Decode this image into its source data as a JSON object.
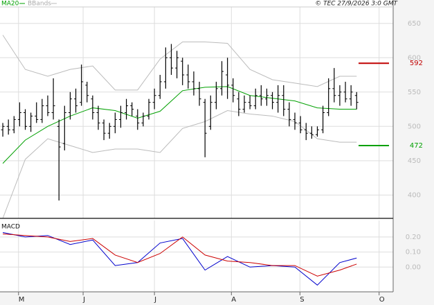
{
  "copyright": "© TEC 27/9/2026 3:0 GMT",
  "chart_data": [
    {
      "type": "ohlc",
      "xlim": [
        -0.5,
        69.5
      ],
      "ylim": [
        366,
        674
      ],
      "yticks": [
        400,
        450,
        500,
        550,
        600,
        650
      ],
      "grid": true,
      "color": "#000000",
      "open": [
        495,
        500,
        495,
        510,
        520,
        500,
        515,
        510,
        530,
        520,
        500,
        475,
        520,
        540,
        535,
        560,
        540,
        520,
        505,
        490,
        500,
        510,
        520,
        530,
        515,
        505,
        515,
        535,
        545,
        565,
        600,
        585,
        595,
        575,
        565,
        555,
        535,
        500,
        535,
        555,
        575,
        560,
        540,
        525,
        535,
        530,
        545,
        540,
        545,
        535,
        545,
        525,
        510,
        505,
        495,
        490,
        488,
        495,
        520,
        555,
        545,
        550,
        540,
        545
      ],
      "high": [
        505,
        510,
        515,
        535,
        525,
        520,
        535,
        540,
        545,
        570,
        510,
        530,
        550,
        555,
        590,
        565,
        545,
        530,
        510,
        505,
        520,
        530,
        540,
        535,
        525,
        520,
        540,
        555,
        575,
        615,
        620,
        610,
        600,
        590,
        580,
        565,
        540,
        545,
        565,
        595,
        600,
        570,
        550,
        545,
        545,
        555,
        560,
        555,
        550,
        560,
        560,
        535,
        520,
        515,
        505,
        500,
        500,
        530,
        570,
        585,
        560,
        565,
        560,
        550
      ],
      "low": [
        485,
        488,
        490,
        500,
        495,
        492,
        505,
        505,
        515,
        510,
        392,
        465,
        510,
        520,
        530,
        535,
        510,
        495,
        480,
        482,
        490,
        498,
        510,
        515,
        495,
        500,
        510,
        525,
        540,
        555,
        575,
        570,
        560,
        555,
        545,
        530,
        455,
        495,
        525,
        545,
        540,
        535,
        515,
        520,
        525,
        525,
        530,
        530,
        525,
        520,
        515,
        500,
        495,
        490,
        480,
        482,
        485,
        490,
        515,
        535,
        530,
        535,
        530,
        525
      ],
      "close": [
        500,
        495,
        510,
        520,
        500,
        515,
        510,
        530,
        520,
        530,
        470,
        520,
        540,
        530,
        565,
        545,
        520,
        505,
        490,
        500,
        510,
        520,
        530,
        525,
        505,
        515,
        535,
        545,
        565,
        600,
        585,
        600,
        575,
        565,
        555,
        540,
        490,
        535,
        555,
        580,
        560,
        545,
        525,
        535,
        530,
        545,
        540,
        545,
        535,
        545,
        525,
        510,
        505,
        495,
        490,
        488,
        495,
        520,
        555,
        545,
        550,
        540,
        550,
        535
      ],
      "series": [
        {
          "name": "MA20",
          "color": "#00a000",
          "x": [
            0,
            4,
            8,
            12,
            16,
            20,
            24,
            28,
            32,
            36,
            40,
            44,
            48,
            52,
            56,
            60,
            63
          ],
          "values": [
            446,
            480,
            500,
            515,
            527,
            523,
            512,
            522,
            552,
            557,
            558,
            545,
            541,
            537,
            527,
            525,
            525
          ]
        },
        {
          "name": "BBands",
          "color": "#bbbbbb",
          "x": [
            0,
            4,
            8,
            12,
            16,
            20,
            24,
            28,
            32,
            36,
            40,
            44,
            48,
            52,
            56,
            60,
            63
          ],
          "values_upper": [
            633,
            583,
            573,
            583,
            588,
            553,
            553,
            598,
            623,
            623,
            621,
            583,
            568,
            563,
            558,
            573,
            573
          ],
          "values_lower": [
            366,
            452,
            482,
            472,
            462,
            467,
            467,
            462,
            497,
            507,
            523,
            518,
            515,
            507,
            482,
            477,
            477
          ]
        }
      ],
      "annotations": [
        {
          "value": 592,
          "color": "#c00000"
        },
        {
          "value": 472,
          "color": "#00a000"
        }
      ]
    },
    {
      "type": "line",
      "title": "MACD",
      "xlim": [
        -0.5,
        69.5
      ],
      "ylim": [
        -0.16,
        0.31
      ],
      "yticks": [
        {
          "value": 0.2,
          "label": "0.20"
        },
        {
          "value": 0.1,
          "label": "0.10"
        },
        {
          "value": 0,
          "label": "0.00"
        }
      ],
      "xticks": [
        {
          "value": 2.8,
          "label": "M"
        },
        {
          "value": 14.3,
          "label": "J"
        },
        {
          "value": 27,
          "label": "J"
        },
        {
          "value": 40.7,
          "label": "A"
        },
        {
          "value": 52.9,
          "label": "S"
        },
        {
          "value": 67,
          "label": "O"
        }
      ],
      "grid": true,
      "series": [
        {
          "color": "#0000cc",
          "x": [
            0,
            4,
            8,
            12,
            16,
            20,
            24,
            28,
            32,
            36,
            40,
            44,
            48,
            52,
            56,
            60,
            63
          ],
          "values": [
            0.23,
            0.2,
            0.21,
            0.15,
            0.18,
            0.01,
            0.03,
            0.16,
            0.19,
            -0.02,
            0.07,
            0.0,
            0.01,
            0.0,
            -0.12,
            0.03,
            0.06
          ]
        },
        {
          "color": "#cc0000",
          "x": [
            0,
            4,
            8,
            12,
            16,
            20,
            24,
            28,
            32,
            36,
            40,
            44,
            48,
            52,
            56,
            60,
            63
          ],
          "values": [
            0.22,
            0.21,
            0.2,
            0.17,
            0.19,
            0.08,
            0.03,
            0.09,
            0.2,
            0.08,
            0.04,
            0.03,
            0.01,
            0.01,
            -0.06,
            -0.02,
            0.02
          ]
        }
      ]
    }
  ]
}
